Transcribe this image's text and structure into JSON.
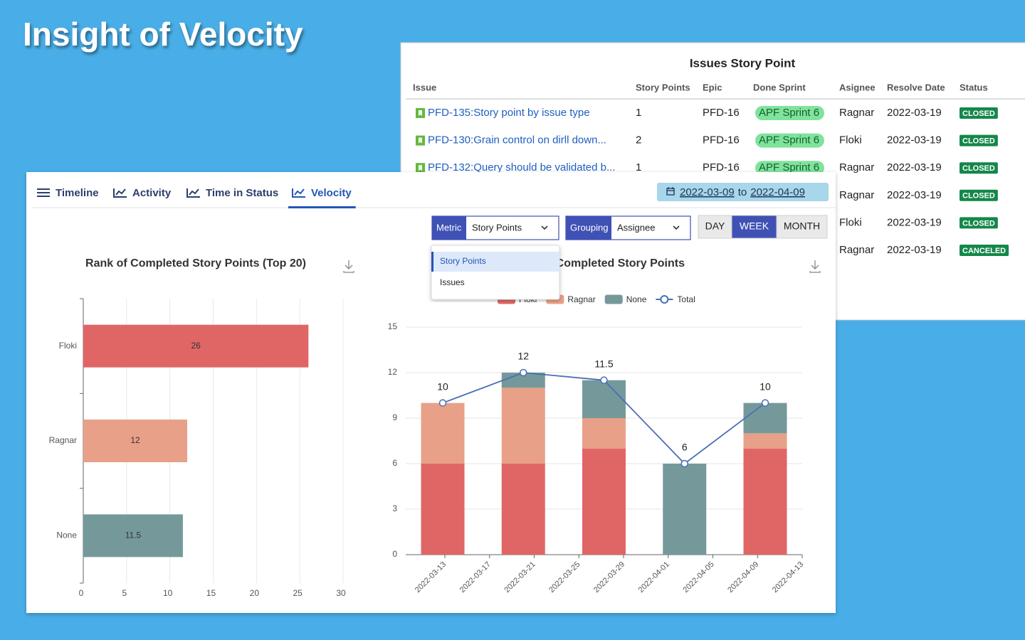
{
  "title": "Insight of Velocity",
  "issues_panel": {
    "title": "Issues Story Point",
    "columns": [
      "Issue",
      "Story Points",
      "Epic",
      "Done Sprint",
      "Asignee",
      "Resolve Date",
      "Status"
    ],
    "rows": [
      {
        "issue": "PFD-135:Story point by issue type",
        "story_points": 1,
        "epic": "PFD-16",
        "sprint": "APF Sprint 6",
        "assignee": "Ragnar",
        "resolve_date": "2022-03-19",
        "status": "CLOSED"
      },
      {
        "issue": "PFD-130:Grain control on dirll down...",
        "story_points": 2,
        "epic": "PFD-16",
        "sprint": "APF Sprint 6",
        "assignee": "Floki",
        "resolve_date": "2022-03-19",
        "status": "CLOSED"
      },
      {
        "issue": "PFD-132:Query should be validated b...",
        "story_points": 1,
        "epic": "PFD-16",
        "sprint": "APF Sprint 6",
        "assignee": "Ragnar",
        "resolve_date": "2022-03-19",
        "status": "CLOSED"
      },
      {
        "assignee": "Ragnar",
        "resolve_date": "2022-03-19",
        "status": "CLOSED"
      },
      {
        "assignee": "Floki",
        "resolve_date": "2022-03-19",
        "status": "CLOSED"
      },
      {
        "assignee": "Ragnar",
        "resolve_date": "2022-03-19",
        "status": "CANCELED"
      }
    ]
  },
  "tabs": [
    "Timeline",
    "Activity",
    "Time in Status",
    "Velocity"
  ],
  "active_tab": 3,
  "date_range": {
    "start": "2022-03-09",
    "separator": "to",
    "end": "2022-04-09"
  },
  "metric": {
    "label": "Metric",
    "value": "Story Points",
    "options": [
      "Story Points",
      "Issues"
    ],
    "highlighted": 0
  },
  "grouping": {
    "label": "Grouping",
    "value": "Assignee"
  },
  "granularity": {
    "options": [
      "DAY",
      "WEEK",
      "MONTH"
    ],
    "active": 1
  },
  "chart_data": [
    {
      "type": "bar",
      "orientation": "horizontal",
      "title": "Rank of Completed Story Points (Top 20)",
      "categories": [
        "Floki",
        "Ragnar",
        "None"
      ],
      "values": [
        26,
        12,
        11.5
      ],
      "colors": [
        "#e06666",
        "#e8a088",
        "#75999b"
      ],
      "xlim": [
        0,
        30
      ],
      "xticks": [
        0,
        5,
        10,
        15,
        20,
        25,
        30
      ],
      "grid": true
    },
    {
      "type": "stacked_bar_line",
      "title": "Completed Story Points",
      "categories": [
        null,
        null,
        null,
        null,
        null
      ],
      "xtick_labels": [
        "2022-03-13",
        "2022-03-17",
        "2022-03-21",
        "2022-03-25",
        "2022-03-29",
        "2022-04-01",
        "2022-04-05",
        "2022-04-09",
        "2022-04-13"
      ],
      "series": [
        {
          "name": "Floki",
          "color": "#e06666",
          "values": [
            6,
            6,
            7,
            0,
            7
          ]
        },
        {
          "name": "Ragnar",
          "color": "#e8a088",
          "values": [
            4,
            5,
            2,
            0,
            1
          ]
        },
        {
          "name": "None",
          "color": "#75999b",
          "values": [
            0,
            1,
            2.5,
            6,
            2
          ]
        },
        {
          "name": "Total",
          "type": "line",
          "color": "#4a6fb5",
          "values": [
            10,
            12,
            11.5,
            6,
            10
          ]
        }
      ],
      "ylim": [
        0,
        15
      ],
      "yticks": [
        0,
        3,
        6,
        9,
        12,
        15
      ],
      "grid": true,
      "legend": "top"
    }
  ]
}
